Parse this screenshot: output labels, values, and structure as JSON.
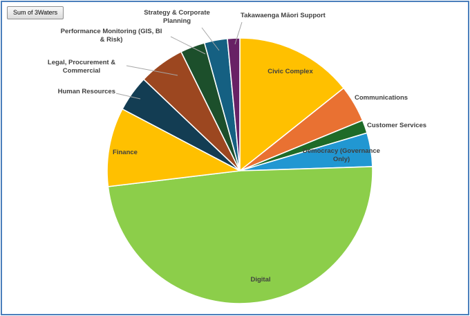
{
  "window": {
    "border_color": "#4A7EBB",
    "background": "#FFFFFF"
  },
  "pivot_field_button": {
    "label": "Sum of 3Waters"
  },
  "chart_data": {
    "type": "pie",
    "title": "",
    "legend": "none",
    "value_format": "percent_of_total_estimated",
    "start_angle_deg": 0,
    "direction": "clockwise",
    "label_color": "#3F3F3F",
    "leader_line_color": "#A6A6A6",
    "slices": [
      {
        "label": "Civic Complex",
        "value": 14.3,
        "color": "#FFC000"
      },
      {
        "label": "Communications",
        "value": 4.5,
        "color": "#E97132"
      },
      {
        "label": "Customer Services",
        "value": 1.6,
        "color": "#1E6B28"
      },
      {
        "label": "Democracy (Governance Only)",
        "value": 4.1,
        "color": "#2197D2"
      },
      {
        "label": "Digital",
        "value": 48.6,
        "color": "#8CCE4A"
      },
      {
        "label": "Finance",
        "value": 9.6,
        "color": "#FFC000"
      },
      {
        "label": "Human Resources",
        "value": 4.4,
        "color": "#133D53"
      },
      {
        "label": "Legal, Procurement & Commercial",
        "value": 5.6,
        "color": "#9C4720"
      },
      {
        "label": "Performance Monitoring (GIS, BI & Risk)",
        "value": 3.0,
        "color": "#1C4F2B"
      },
      {
        "label": "Strategy & Corporate Planning",
        "value": 2.8,
        "color": "#156082"
      },
      {
        "label": "Takawaenga Māori Support",
        "value": 1.5,
        "color": "#682165"
      }
    ]
  }
}
